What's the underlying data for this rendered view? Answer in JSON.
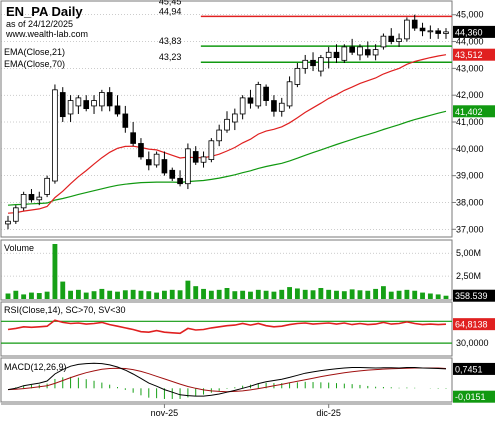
{
  "header": {
    "title": "EN_PA Daily",
    "date_label": "as of 24/12/2025",
    "site": "www.wealth-lab.com",
    "legend": [
      "EMA(Close,21)",
      "EMA(Close,70)"
    ]
  },
  "colors": {
    "frame": "#7a7a7a",
    "grid": "#9a9a9a",
    "bull": "#ffffff",
    "bear": "#000000",
    "ema21": "#e02020",
    "ema70": "#119911",
    "volume": "#16a016",
    "rsi": "#e02020",
    "rsi_band": "#119911",
    "macd": "#000000",
    "signal": "#a01010",
    "hist": "#16a016",
    "level_red": "#e02020",
    "level_green": "#119911",
    "tag_black": "#000000",
    "tag_red": "#e02020",
    "tag_green": "#119911"
  },
  "chart_data": {
    "type": "candlestick",
    "title": "EN_PA Daily",
    "price_axis": {
      "ticks": [
        "45,000",
        "44,000",
        "43,000",
        "42,000",
        "41,000",
        "40,000",
        "39,000",
        "38,000",
        "37,000"
      ],
      "range": [
        36.75,
        45.4
      ]
    },
    "x_axis": {
      "labels": [
        "nov-25",
        "dic-25"
      ],
      "label_bar_index": [
        20,
        41
      ]
    },
    "level_lines": [
      {
        "value": 44.94,
        "label_top": "45,45",
        "label": "44,94",
        "color": "red",
        "from_bar": 40
      },
      {
        "value": 43.83,
        "label": "43,83",
        "color": "green",
        "from_bar": 40
      },
      {
        "value": 43.23,
        "label": "43,23",
        "color": "green",
        "from_bar": 40
      }
    ],
    "candles": [
      [
        37.2,
        37.5,
        37.0,
        37.3
      ],
      [
        37.3,
        37.9,
        37.2,
        37.8
      ],
      [
        37.8,
        38.4,
        37.7,
        38.3
      ],
      [
        38.3,
        38.5,
        38.0,
        38.1
      ],
      [
        38.1,
        38.4,
        37.9,
        38.2
      ],
      [
        38.3,
        39.0,
        38.2,
        38.9
      ],
      [
        38.8,
        42.4,
        38.7,
        42.2
      ],
      [
        42.1,
        42.3,
        41.0,
        41.2
      ],
      [
        41.3,
        42.0,
        41.0,
        41.8
      ],
      [
        41.6,
        42.0,
        41.3,
        41.9
      ],
      [
        41.8,
        42.0,
        41.4,
        41.5
      ],
      [
        41.6,
        42.0,
        41.3,
        41.8
      ],
      [
        41.6,
        42.2,
        41.4,
        42.1
      ],
      [
        42.1,
        42.3,
        41.4,
        41.6
      ],
      [
        41.6,
        42.0,
        41.2,
        41.3
      ],
      [
        41.3,
        41.6,
        40.6,
        40.8
      ],
      [
        40.6,
        41.0,
        40.1,
        40.2
      ],
      [
        40.2,
        40.4,
        39.6,
        39.7
      ],
      [
        39.6,
        39.9,
        39.2,
        39.4
      ],
      [
        39.4,
        39.9,
        39.3,
        39.8
      ],
      [
        39.6,
        39.9,
        39.0,
        39.1
      ],
      [
        39.2,
        39.3,
        38.8,
        38.9
      ],
      [
        38.9,
        39.2,
        38.6,
        38.7
      ],
      [
        38.7,
        40.2,
        38.5,
        40.0
      ],
      [
        39.9,
        40.1,
        39.4,
        39.5
      ],
      [
        39.5,
        39.9,
        39.3,
        39.7
      ],
      [
        39.6,
        40.4,
        39.5,
        40.3
      ],
      [
        40.3,
        40.9,
        40.1,
        40.7
      ],
      [
        40.7,
        41.4,
        40.6,
        41.1
      ],
      [
        41.0,
        41.5,
        40.7,
        41.3
      ],
      [
        41.3,
        42.0,
        41.1,
        41.9
      ],
      [
        41.9,
        42.2,
        41.5,
        41.7
      ],
      [
        41.6,
        42.5,
        41.5,
        42.4
      ],
      [
        42.3,
        42.4,
        41.6,
        41.8
      ],
      [
        41.8,
        42.0,
        41.2,
        41.4
      ],
      [
        41.4,
        41.9,
        41.2,
        41.7
      ],
      [
        41.6,
        42.7,
        41.5,
        42.5
      ],
      [
        42.4,
        43.2,
        42.3,
        43.0
      ],
      [
        43.0,
        43.5,
        42.8,
        43.3
      ],
      [
        43.3,
        43.6,
        42.9,
        43.1
      ],
      [
        42.9,
        43.5,
        42.7,
        43.4
      ],
      [
        43.4,
        43.8,
        43.0,
        43.6
      ],
      [
        43.6,
        43.9,
        43.2,
        43.4
      ],
      [
        43.3,
        43.9,
        43.2,
        43.8
      ],
      [
        43.8,
        44.1,
        43.5,
        43.6
      ],
      [
        43.5,
        43.9,
        43.3,
        43.8
      ],
      [
        43.7,
        44.0,
        43.4,
        43.5
      ],
      [
        43.5,
        43.9,
        43.3,
        43.7
      ],
      [
        43.8,
        44.3,
        43.7,
        44.2
      ],
      [
        44.2,
        44.5,
        43.9,
        44.0
      ],
      [
        44.0,
        44.3,
        43.8,
        44.1
      ],
      [
        44.1,
        44.9,
        44.0,
        44.8
      ],
      [
        44.8,
        45.0,
        44.4,
        44.5
      ],
      [
        44.5,
        44.7,
        44.2,
        44.4
      ],
      [
        44.4,
        44.6,
        44.1,
        44.4
      ],
      [
        44.4,
        44.5,
        44.1,
        44.3
      ],
      [
        44.3,
        44.5,
        44.1,
        44.36
      ]
    ],
    "ema21": [
      37.6,
      37.62,
      37.68,
      37.72,
      37.76,
      37.85,
      38.18,
      38.42,
      38.7,
      38.96,
      39.19,
      39.43,
      39.67,
      39.87,
      40.02,
      40.09,
      40.1,
      40.05,
      39.99,
      39.96,
      39.86,
      39.76,
      39.66,
      39.69,
      39.67,
      39.67,
      39.72,
      39.8,
      39.92,
      40.05,
      40.22,
      40.36,
      40.55,
      40.66,
      40.73,
      40.82,
      40.97,
      41.16,
      41.36,
      41.53,
      41.7,
      41.88,
      42.02,
      42.18,
      42.3,
      42.44,
      42.54,
      42.64,
      42.79,
      42.9,
      43.0,
      43.15,
      43.26,
      43.33,
      43.4,
      43.46,
      43.51
    ],
    "ema70": [
      37.9,
      37.92,
      37.93,
      37.95,
      37.96,
      37.98,
      38.09,
      38.15,
      38.22,
      38.3,
      38.37,
      38.44,
      38.51,
      38.58,
      38.64,
      38.68,
      38.71,
      38.74,
      38.75,
      38.76,
      38.76,
      38.76,
      38.75,
      38.78,
      38.8,
      38.82,
      38.86,
      38.91,
      38.97,
      39.03,
      39.11,
      39.18,
      39.27,
      39.34,
      39.4,
      39.46,
      39.55,
      39.65,
      39.76,
      39.86,
      39.96,
      40.06,
      40.16,
      40.26,
      40.35,
      40.45,
      40.53,
      40.62,
      40.72,
      40.81,
      40.9,
      41.0,
      41.09,
      41.17,
      41.25,
      41.33,
      41.4
    ],
    "volume": {
      "axis_ticks": [
        "5,00M",
        "2,50M"
      ],
      "max": 6000000,
      "values": [
        600000,
        900000,
        500000,
        700000,
        650000,
        800000,
        6000000,
        1900000,
        900000,
        1000000,
        700000,
        850000,
        1100000,
        900000,
        800000,
        950000,
        1000000,
        900000,
        850000,
        700000,
        900000,
        1000000,
        950000,
        2000000,
        1400000,
        1100000,
        900000,
        1000000,
        1200000,
        850000,
        900000,
        800000,
        1000000,
        900000,
        800000,
        1000000,
        1300000,
        1150000,
        1000000,
        950000,
        1200000,
        1000000,
        900000,
        850000,
        1050000,
        950000,
        900000,
        1100000,
        1400000,
        800000,
        900000,
        1000000,
        900000,
        700000,
        600000,
        500000,
        358539
      ]
    },
    "rsi": {
      "label": "RSI(Close,14), SC>70, SV<30",
      "axis_ticks": [
        "30,0000"
      ],
      "overbought": 70,
      "oversold": 30,
      "values": [
        55,
        57,
        60,
        59,
        60,
        61,
        72,
        68,
        66,
        67,
        65,
        66,
        68,
        64,
        61,
        58,
        55,
        51,
        50,
        53,
        50,
        49,
        48,
        57,
        54,
        55,
        58,
        60,
        62,
        63,
        66,
        63,
        66,
        62,
        60,
        61,
        64,
        66,
        67,
        65,
        66,
        67,
        65,
        67,
        64,
        66,
        64,
        65,
        68,
        65,
        66,
        69,
        66,
        64,
        65,
        64,
        64.8138
      ]
    },
    "macd": {
      "label": "MACD(12,26,9)",
      "macd": [
        -0.05,
        0.0,
        0.1,
        0.15,
        0.2,
        0.28,
        0.55,
        0.72,
        0.85,
        0.92,
        0.95,
        0.96,
        0.95,
        0.9,
        0.82,
        0.7,
        0.55,
        0.38,
        0.2,
        0.08,
        -0.05,
        -0.15,
        -0.25,
        -0.28,
        -0.3,
        -0.3,
        -0.27,
        -0.22,
        -0.15,
        -0.08,
        0.0,
        0.08,
        0.18,
        0.25,
        0.3,
        0.35,
        0.42,
        0.5,
        0.58,
        0.63,
        0.68,
        0.72,
        0.75,
        0.78,
        0.8,
        0.8,
        0.79,
        0.78,
        0.79,
        0.79,
        0.78,
        0.8,
        0.8,
        0.78,
        0.77,
        0.76,
        0.7451
      ],
      "signal": [
        -0.05,
        -0.04,
        -0.01,
        0.02,
        0.06,
        0.1,
        0.19,
        0.3,
        0.41,
        0.51,
        0.6,
        0.67,
        0.73,
        0.76,
        0.77,
        0.76,
        0.72,
        0.65,
        0.56,
        0.46,
        0.36,
        0.26,
        0.16,
        0.07,
        0.0,
        -0.06,
        -0.1,
        -0.12,
        -0.13,
        -0.12,
        -0.1,
        -0.06,
        -0.01,
        0.04,
        0.1,
        0.15,
        0.21,
        0.27,
        0.33,
        0.39,
        0.45,
        0.5,
        0.55,
        0.6,
        0.64,
        0.67,
        0.7,
        0.72,
        0.74,
        0.75,
        0.76,
        0.77,
        0.78,
        0.78,
        0.78,
        0.78,
        0.7602
      ],
      "last_hist": -0.0151
    },
    "last_values": {
      "price": "44,360",
      "ema21": "43,512",
      "ema70": "41,402",
      "volume": "358.539",
      "rsi": "64,8138",
      "macd": "0,7451",
      "hist": "-0,0151"
    }
  }
}
